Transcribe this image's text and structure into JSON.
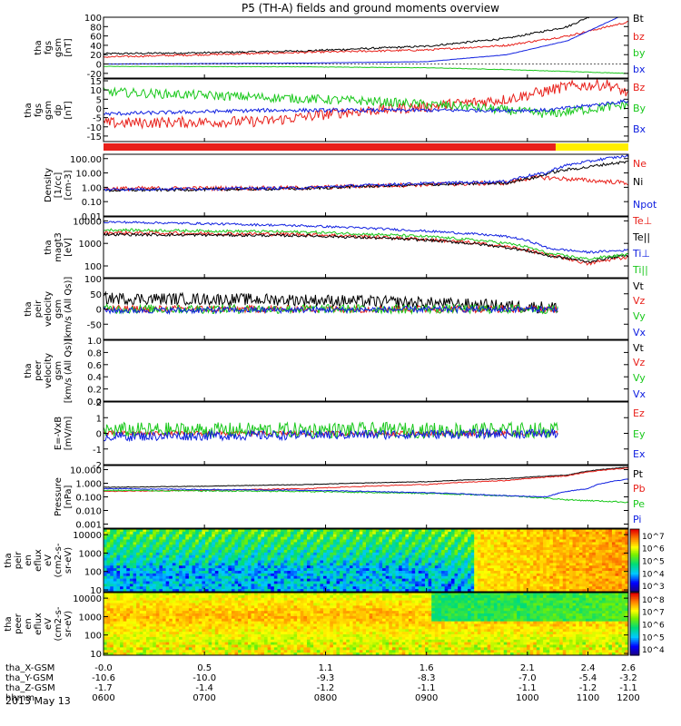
{
  "title": "P5 (TH-A) fields and ground moments overview",
  "date_label": "2013 May 13",
  "colors": {
    "black": "#000000",
    "red": "#e8201a",
    "green": "#19c81b",
    "blue": "#1020e0",
    "yellow": "#ffee00"
  },
  "chart_data": [
    {
      "type": "line",
      "name": "fgs_gsm",
      "ylabel": [
        "tha",
        "fgs",
        "gsm",
        "[nT]"
      ],
      "ylim": [
        -30,
        100
      ],
      "yticks": [
        "100",
        "80",
        "60",
        "40",
        "20",
        "0",
        "-20"
      ],
      "series": [
        {
          "name": "Bt",
          "color": "black",
          "points": [
            [
              0,
              22
            ],
            [
              0.5,
              24
            ],
            [
              1.0,
              28
            ],
            [
              1.6,
              38
            ],
            [
              2.0,
              55
            ],
            [
              2.3,
              80
            ],
            [
              2.6,
              140
            ]
          ],
          "noise": 2
        },
        {
          "name": "bz",
          "color": "red",
          "points": [
            [
              0,
              15
            ],
            [
              0.5,
              20
            ],
            [
              1.0,
              25
            ],
            [
              1.6,
              30
            ],
            [
              2.0,
              40
            ],
            [
              2.3,
              60
            ],
            [
              2.6,
              90
            ]
          ],
          "noise": 2
        },
        {
          "name": "by",
          "color": "green",
          "points": [
            [
              0,
              -5
            ],
            [
              1.0,
              -6
            ],
            [
              1.6,
              -8
            ],
            [
              2.0,
              -12
            ],
            [
              2.6,
              -20
            ]
          ],
          "noise": 0.5
        },
        {
          "name": "bx",
          "color": "blue",
          "points": [
            [
              0,
              0
            ],
            [
              1.0,
              2
            ],
            [
              1.6,
              5
            ],
            [
              2.0,
              20
            ],
            [
              2.3,
              50
            ],
            [
              2.6,
              110
            ]
          ],
          "noise": 0.3
        }
      ]
    },
    {
      "type": "line",
      "name": "fgs_gsm_dp",
      "ylabel": [
        "tha",
        "fgs",
        "gsm",
        "dp",
        "[nT]"
      ],
      "ylim": [
        -18,
        16
      ],
      "yticks": [
        "15",
        "10",
        "5",
        "0",
        "-5",
        "-10",
        "-15"
      ],
      "series": [
        {
          "name": "Bz",
          "color": "red",
          "points": [
            [
              0,
              -8
            ],
            [
              0.8,
              -7
            ],
            [
              1.2,
              -2
            ],
            [
              1.6,
              1
            ],
            [
              2.0,
              5
            ],
            [
              2.3,
              12
            ],
            [
              2.5,
              13
            ],
            [
              2.6,
              8
            ]
          ],
          "noise": 3
        },
        {
          "name": "By",
          "color": "green",
          "points": [
            [
              0,
              9
            ],
            [
              0.8,
              6
            ],
            [
              1.3,
              4
            ],
            [
              1.8,
              1
            ],
            [
              2.2,
              -3
            ],
            [
              2.6,
              2
            ]
          ],
          "noise": 2.5
        },
        {
          "name": "Bx",
          "color": "blue",
          "points": [
            [
              0,
              -3
            ],
            [
              0.8,
              -1
            ],
            [
              1.6,
              -1
            ],
            [
              2.2,
              -1
            ],
            [
              2.6,
              4
            ]
          ],
          "noise": 1
        }
      ]
    },
    {
      "type": "line",
      "name": "density",
      "log": true,
      "ylabel": [
        "Density",
        "[1/cc]",
        "[cm-3]"
      ],
      "ylim": [
        0.01,
        200
      ],
      "yticks": [
        "100.00",
        "10.00",
        "1.00",
        "0.10",
        "0.01"
      ],
      "series": [
        {
          "name": "Ne",
          "color": "red",
          "points": [
            [
              0,
              0.8
            ],
            [
              1.0,
              0.9
            ],
            [
              2.0,
              2
            ],
            [
              2.15,
              5
            ],
            [
              2.4,
              3
            ],
            [
              2.6,
              2
            ]
          ],
          "noise": 0.15
        },
        {
          "name": "Ni",
          "color": "black",
          "points": [
            [
              0,
              0.6
            ],
            [
              1.0,
              0.8
            ],
            [
              2.0,
              2
            ],
            [
              2.15,
              5
            ],
            [
              2.4,
              25
            ],
            [
              2.6,
              60
            ]
          ],
          "noise": 0.1
        },
        {
          "name": "Npot",
          "color": "blue",
          "points": [
            [
              0,
              0.7
            ],
            [
              1.0,
              0.9
            ],
            [
              2.0,
              2.5
            ],
            [
              2.2,
              10
            ],
            [
              2.4,
              60
            ],
            [
              2.6,
              150
            ]
          ],
          "noise": 0.1
        }
      ]
    },
    {
      "type": "line",
      "name": "temperature",
      "log": true,
      "ylabel": [
        "tha",
        "magt3",
        "[eV]"
      ],
      "ylim": [
        30,
        15000
      ],
      "yticks": [
        "10000",
        "1000",
        "100"
      ],
      "series": [
        {
          "name": "Te⊥",
          "color": "red",
          "points": [
            [
              0,
              3000
            ],
            [
              1.0,
              2500
            ],
            [
              1.6,
              1500
            ],
            [
              2.0,
              700
            ],
            [
              2.2,
              300
            ],
            [
              2.4,
              120
            ],
            [
              2.6,
              250
            ]
          ],
          "noise": 0.08
        },
        {
          "name": "Te||",
          "color": "black",
          "points": [
            [
              0,
              2500
            ],
            [
              1.0,
              2200
            ],
            [
              1.6,
              1400
            ],
            [
              2.0,
              650
            ],
            [
              2.2,
              280
            ],
            [
              2.4,
              150
            ],
            [
              2.6,
              300
            ]
          ],
          "noise": 0.06
        },
        {
          "name": "Ti⊥",
          "color": "blue",
          "points": [
            [
              0,
              9000
            ],
            [
              1.0,
              6000
            ],
            [
              1.6,
              3500
            ],
            [
              2.0,
              2000
            ],
            [
              2.2,
              600
            ],
            [
              2.4,
              400
            ],
            [
              2.6,
              500
            ]
          ],
          "noise": 0.05
        },
        {
          "name": "Ti||",
          "color": "green",
          "points": [
            [
              0,
              4000
            ],
            [
              1.0,
              3200
            ],
            [
              1.6,
              2000
            ],
            [
              2.0,
              1000
            ],
            [
              2.2,
              350
            ],
            [
              2.4,
              200
            ],
            [
              2.6,
              320
            ]
          ],
          "noise": 0.06
        }
      ]
    },
    {
      "type": "line",
      "name": "peir_velocity",
      "ylabel": [
        "tha",
        "peir",
        "velocity",
        "gsm",
        "[km/s (All Qs)]"
      ],
      "ylim": [
        -100,
        100
      ],
      "yticks": [
        "100",
        "50",
        "0",
        "-50"
      ],
      "series": [
        {
          "name": "Vt",
          "color": "black",
          "points": [
            [
              0,
              35
            ],
            [
              1.0,
              30
            ],
            [
              1.6,
              20
            ],
            [
              2.0,
              10
            ],
            [
              2.25,
              5
            ]
          ],
          "noise": 20
        },
        {
          "name": "Vz",
          "color": "red",
          "points": [
            [
              0,
              0
            ],
            [
              2.25,
              0
            ]
          ],
          "noise": 12
        },
        {
          "name": "Vy",
          "color": "green",
          "points": [
            [
              0,
              0
            ],
            [
              2.25,
              0
            ]
          ],
          "noise": 15
        },
        {
          "name": "Vx",
          "color": "blue",
          "points": [
            [
              0,
              -5
            ],
            [
              2.25,
              0
            ]
          ],
          "noise": 10
        }
      ]
    },
    {
      "type": "line",
      "name": "peer_velocity",
      "ylabel": [
        "tha",
        "peer",
        "velocity",
        "gsm",
        "[km/s (All Qs)]"
      ],
      "ylim": [
        0,
        1
      ],
      "yticks": [
        "1.0",
        "0.8",
        "0.6",
        "0.4",
        "0.2",
        "0.0"
      ],
      "series": [
        {
          "name": "Vt",
          "color": "black",
          "points": []
        },
        {
          "name": "Vz",
          "color": "red",
          "points": []
        },
        {
          "name": "Vy",
          "color": "green",
          "points": []
        },
        {
          "name": "Vx",
          "color": "blue",
          "points": []
        }
      ]
    },
    {
      "type": "line",
      "name": "e_field",
      "ylabel": [
        "E=-VxB",
        "[mV/m]"
      ],
      "ylim": [
        -2,
        2
      ],
      "yticks": [
        "2",
        "1",
        "0",
        "-1",
        "-2"
      ],
      "series": [
        {
          "name": "Ez",
          "color": "red",
          "points": [
            [
              0,
              0
            ],
            [
              2.25,
              0
            ]
          ],
          "noise": 0.15
        },
        {
          "name": "Ey",
          "color": "green",
          "points": [
            [
              0,
              0.2
            ],
            [
              2.25,
              0.2
            ]
          ],
          "noise": 0.5
        },
        {
          "name": "Ex",
          "color": "blue",
          "points": [
            [
              0,
              -0.2
            ],
            [
              2.25,
              0
            ]
          ],
          "noise": 0.3
        }
      ]
    },
    {
      "type": "line",
      "name": "pressure",
      "log": true,
      "ylabel": [
        "Pressure",
        "[nPa]"
      ],
      "ylim": [
        0.0005,
        20
      ],
      "yticks": [
        "10.000",
        "1.000",
        "0.100",
        "0.010",
        "0.001"
      ],
      "series": [
        {
          "name": "Pt",
          "color": "black",
          "points": [
            [
              0,
              0.5
            ],
            [
              0.5,
              0.6
            ],
            [
              1.0,
              0.8
            ],
            [
              1.6,
              1.3
            ],
            [
              2.0,
              2.2
            ],
            [
              2.3,
              4
            ],
            [
              2.6,
              15
            ]
          ],
          "noise": 0.02
        },
        {
          "name": "Pb",
          "color": "red",
          "points": [
            [
              0,
              0.25
            ],
            [
              0.5,
              0.3
            ],
            [
              1.0,
              0.4
            ],
            [
              1.6,
              0.8
            ],
            [
              2.0,
              1.6
            ],
            [
              2.3,
              3.5
            ],
            [
              2.6,
              13
            ]
          ],
          "noise": 0.03
        },
        {
          "name": "Pe",
          "color": "green",
          "points": [
            [
              0,
              0.3
            ],
            [
              1.0,
              0.25
            ],
            [
              1.6,
              0.18
            ],
            [
              2.0,
              0.12
            ],
            [
              2.3,
              0.06
            ],
            [
              2.6,
              0.04
            ]
          ],
          "noise": 0.05
        },
        {
          "name": "Pi",
          "color": "blue",
          "points": [
            [
              0,
              0.4
            ],
            [
              1.0,
              0.3
            ],
            [
              1.6,
              0.2
            ],
            [
              2.0,
              0.12
            ],
            [
              2.2,
              0.1
            ],
            [
              2.4,
              0.4
            ],
            [
              2.6,
              2
            ]
          ],
          "noise": 0.03
        }
      ]
    },
    {
      "type": "heatmap",
      "name": "peir_spectrogram",
      "ylabel": [
        "tha",
        "peir",
        "en",
        "eflux",
        "eV",
        "(cm2-s-",
        "sr-eV)"
      ],
      "ylim": [
        8,
        20000
      ],
      "yticks": [
        "10000",
        "1000",
        "100",
        "10"
      ],
      "cbar_labels": [
        "10^7",
        "10^6",
        "10^5",
        "10^4",
        "10^3"
      ],
      "cbar_exp": [
        7,
        6,
        5,
        4,
        3
      ],
      "cbar_range": [
        2.5,
        7.5
      ]
    },
    {
      "type": "heatmap",
      "name": "peer_spectrogram",
      "ylabel": [
        "tha",
        "peer",
        "en",
        "eflux",
        "eV",
        "(cm2-s-",
        "sr-eV)"
      ],
      "ylim": [
        8,
        20000
      ],
      "yticks": [
        "10000",
        "1000",
        "100",
        "10"
      ],
      "cbar_labels": [
        "10^8",
        "10^7",
        "10^6",
        "10^5",
        "10^4"
      ],
      "cbar_exp": [
        8,
        7,
        6,
        5,
        4
      ],
      "cbar_range": [
        3.5,
        8.5
      ]
    }
  ],
  "x_axis": {
    "xlim": [
      0,
      2.6
    ],
    "tick_labels": [
      "-0.0",
      "0.5",
      "1.1",
      "1.6",
      "2.1",
      "2.4",
      "2.6"
    ],
    "row_names": [
      "tha_X-GSM",
      "tha_Y-GSM",
      "tha_Z-GSM",
      "hhmm"
    ],
    "rows": [
      [
        "-10.6",
        "-10.0",
        "-9.3",
        "-8.3",
        "-7.0",
        "-5.4",
        "-3.2"
      ],
      [
        "-1.7",
        "-1.4",
        "-1.2",
        "-1.1",
        "-1.1",
        "-1.2",
        "-1.1"
      ],
      [
        "0600",
        "0700",
        "0800",
        "0900",
        "1000",
        "1100",
        "1200"
      ]
    ]
  },
  "mode_bar": {
    "red_until": 2.24,
    "yellow_after": 2.24
  }
}
